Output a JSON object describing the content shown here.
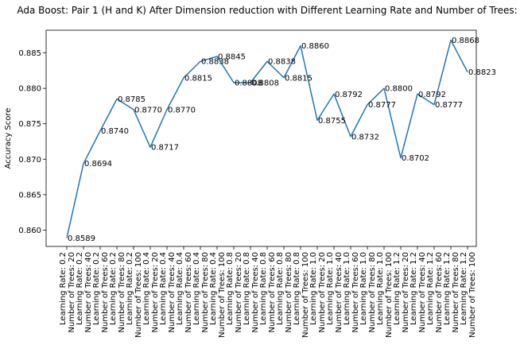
{
  "chart_data": {
    "type": "line",
    "title": "Ada Boost: Pair 1 (H and K) After Dimension reduction with Different Learning Rate and Number of Trees:",
    "xlabel": "",
    "ylabel": "Accuracy Score",
    "ylim": [
      0.8577,
      0.8882
    ],
    "yticks": [
      0.86,
      0.865,
      0.87,
      0.875,
      0.88,
      0.885
    ],
    "ytick_labels": [
      "0.860",
      "0.865",
      "0.870",
      "0.875",
      "0.880",
      "0.885"
    ],
    "grid": false,
    "color": "#1f77b4",
    "categories": [
      [
        "Learning Rate: 0.2",
        "Number of Trees: 20"
      ],
      [
        "Learning Rate: 0.2",
        "Number of Trees: 40"
      ],
      [
        "Learning Rate: 0.2",
        "Number of Trees: 60"
      ],
      [
        "Learning Rate: 0.2",
        "Number of Trees: 80"
      ],
      [
        "Learning Rate: 0.2",
        "Number of Trees: 100"
      ],
      [
        "Learning Rate: 0.4",
        "Number of Trees: 20"
      ],
      [
        "Learning Rate: 0.4",
        "Number of Trees: 40"
      ],
      [
        "Learning Rate: 0.4",
        "Number of Trees: 60"
      ],
      [
        "Learning Rate: 0.4",
        "Number of Trees: 80"
      ],
      [
        "Learning Rate: 0.4",
        "Number of Trees: 100"
      ],
      [
        "Learning Rate: 0.8",
        "Number of Trees: 20"
      ],
      [
        "Learning Rate: 0.8",
        "Number of Trees: 40"
      ],
      [
        "Learning Rate: 0.8",
        "Number of Trees: 60"
      ],
      [
        "Learning Rate: 0.8",
        "Number of Trees: 80"
      ],
      [
        "Learning Rate: 0.8",
        "Number of Trees: 100"
      ],
      [
        "Learning Rate: 1.0",
        "Number of Trees: 20"
      ],
      [
        "Learning Rate: 1.0",
        "Number of Trees: 40"
      ],
      [
        "Learning Rate: 1.0",
        "Number of Trees: 60"
      ],
      [
        "Learning Rate: 1.0",
        "Number of Trees: 80"
      ],
      [
        "Learning Rate: 1.0",
        "Number of Trees: 100"
      ],
      [
        "Learning Rate: 1.2",
        "Number of Trees: 20"
      ],
      [
        "Learning Rate: 1.2",
        "Number of Trees: 40"
      ],
      [
        "Learning Rate: 1.2",
        "Number of Trees: 60"
      ],
      [
        "Learning Rate: 1.2",
        "Number of Trees: 80"
      ],
      [
        "Learning Rate: 1.2",
        "Number of Trees: 100"
      ]
    ],
    "values": [
      0.8589,
      0.8694,
      0.874,
      0.8785,
      0.877,
      0.8717,
      0.877,
      0.8815,
      0.8838,
      0.8845,
      0.8808,
      0.8808,
      0.8838,
      0.8815,
      0.886,
      0.8755,
      0.8792,
      0.8732,
      0.8777,
      0.88,
      0.8702,
      0.8792,
      0.8777,
      0.8868,
      0.8823
    ],
    "data_labels": [
      "0.8589",
      "0.8694",
      "0.8740",
      "0.8785",
      "0.8770",
      "0.8717",
      "0.8770",
      "0.8815",
      "0.8838",
      "0.8845",
      "0.8808",
      "0.8808",
      "0.8838",
      "0.8815",
      "0.8860",
      "0.8755",
      "0.8792",
      "0.8732",
      "0.8777",
      "0.8800",
      "0.8702",
      "0.8792",
      "0.8777",
      "0.8868",
      "0.8823"
    ]
  }
}
